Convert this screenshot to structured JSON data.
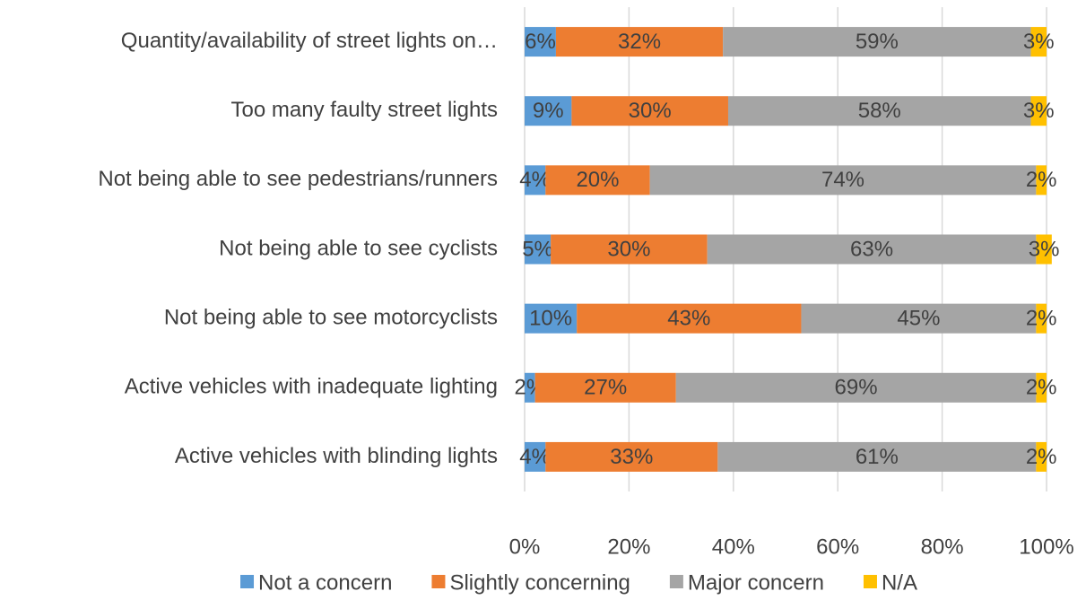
{
  "chart_data": {
    "type": "stacked_barh",
    "categories": [
      "Quantity/availability of street lights on…",
      "Too many faulty street lights",
      "Not being able to see pedestrians/runners",
      "Not being able to see cyclists",
      "Not being able to see motorcyclists",
      "Active vehicles with inadequate lighting",
      "Active vehicles with blinding lights"
    ],
    "series": [
      {
        "name": "Not a concern",
        "color": "#5b9bd5",
        "values": [
          6,
          9,
          4,
          5,
          10,
          2,
          4
        ],
        "value_labels": [
          "6%",
          "9%",
          "4%",
          "5%",
          "10%",
          "2%",
          "4%"
        ]
      },
      {
        "name": "Slightly concerning",
        "color": "#ed7d31",
        "values": [
          32,
          30,
          20,
          30,
          43,
          27,
          33
        ],
        "value_labels": [
          "32%",
          "30%",
          "20%",
          "30%",
          "43%",
          "27%",
          "33%"
        ]
      },
      {
        "name": "Major concern",
        "color": "#a5a5a5",
        "values": [
          59,
          58,
          74,
          63,
          45,
          69,
          61
        ],
        "value_labels": [
          "59%",
          "58%",
          "74%",
          "63%",
          "45%",
          "69%",
          "61%"
        ]
      },
      {
        "name": "N/A",
        "color": "#ffc000",
        "values": [
          3,
          3,
          2,
          3,
          2,
          2,
          2
        ],
        "value_labels": [
          "3%",
          "3%",
          "2%",
          "3%",
          "2%",
          "2%",
          "2%"
        ]
      }
    ],
    "xlim": [
      0,
      100
    ],
    "xticks": [
      {
        "value": 0,
        "label": "0%"
      },
      {
        "value": 20,
        "label": "20%"
      },
      {
        "value": 40,
        "label": "40%"
      },
      {
        "value": 60,
        "label": "60%"
      },
      {
        "value": 80,
        "label": "80%"
      },
      {
        "value": 100,
        "label": "100%"
      }
    ],
    "grid": true,
    "legend": "bottom"
  }
}
